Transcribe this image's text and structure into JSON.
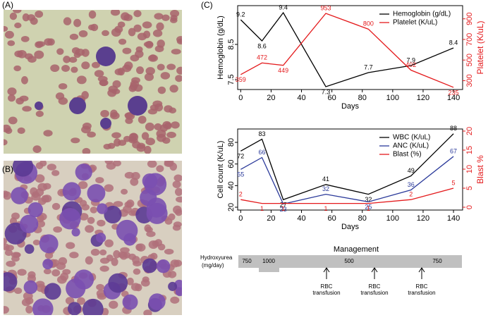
{
  "panels": {
    "a": "(A)",
    "b": "(B)",
    "c": "(C)"
  },
  "chart_data": [
    {
      "type": "line",
      "x_label": "Days",
      "y_label": "Hemoglobin (g/dL)",
      "y2label": "Platelet (K/uL)",
      "x": [
        0,
        14,
        28,
        56,
        84,
        112,
        140
      ],
      "series": [
        {
          "name": "Hemoglobin (g/dL)",
          "color": "#000000",
          "values": [
            9.2,
            8.6,
            9.4,
            7.3,
            7.7,
            7.9,
            8.4
          ]
        },
        {
          "name": "Platelet (K/uL)",
          "color": "#e41a1c",
          "axis": "y2",
          "values": [
            359,
            472,
            449,
            953,
            800,
            402,
            235
          ]
        }
      ],
      "xlim": [
        -2,
        146
      ],
      "xticks": [
        0,
        20,
        40,
        60,
        80,
        100,
        120,
        140
      ],
      "ylim": [
        7.22,
        9.6
      ],
      "yticks": [
        7.5,
        8.5
      ],
      "y2lim": [
        214,
        1028
      ],
      "y2ticks": [
        300,
        500,
        700,
        900
      ],
      "legend": "upper right"
    },
    {
      "type": "line",
      "x_label": "Days",
      "y_label": "Cell count (K/uL)",
      "y2label": "Blast %",
      "x": [
        0,
        14,
        28,
        56,
        84,
        112,
        140
      ],
      "series": [
        {
          "name": "WBC (K/uL)",
          "color": "#000000",
          "values": [
            72,
            83,
            27,
            41,
            32,
            49,
            88
          ]
        },
        {
          "name": "ANC (K/uL)",
          "color": "#2b3a9a",
          "values": [
            55,
            66,
            23,
            32,
            25,
            36,
            67
          ]
        },
        {
          "name": "Blast (%)",
          "color": "#e41a1c",
          "axis": "y2",
          "values": [
            2,
            1,
            1,
            1,
            1,
            2,
            5
          ]
        }
      ],
      "xlim": [
        -2,
        146
      ],
      "xticks": [
        0,
        20,
        40,
        60,
        80,
        100,
        120,
        140
      ],
      "ylim": [
        17.4,
        92.4
      ],
      "yticks": [
        20,
        40,
        60,
        80
      ],
      "y2lim": [
        -0.74,
        20.55
      ],
      "y2ticks": [
        0,
        5,
        10,
        15,
        20
      ],
      "legend": "upper right"
    }
  ],
  "management": {
    "title": "Management",
    "drug": [
      "Hydroxyurea",
      "(mg/day)"
    ],
    "doses": [
      "750",
      "1000",
      "500",
      "750"
    ],
    "transfusions": [
      [
        "RBC",
        "transfusion"
      ],
      [
        "RBC",
        "transfusion"
      ],
      [
        "RBC",
        "transfusion"
      ]
    ]
  }
}
